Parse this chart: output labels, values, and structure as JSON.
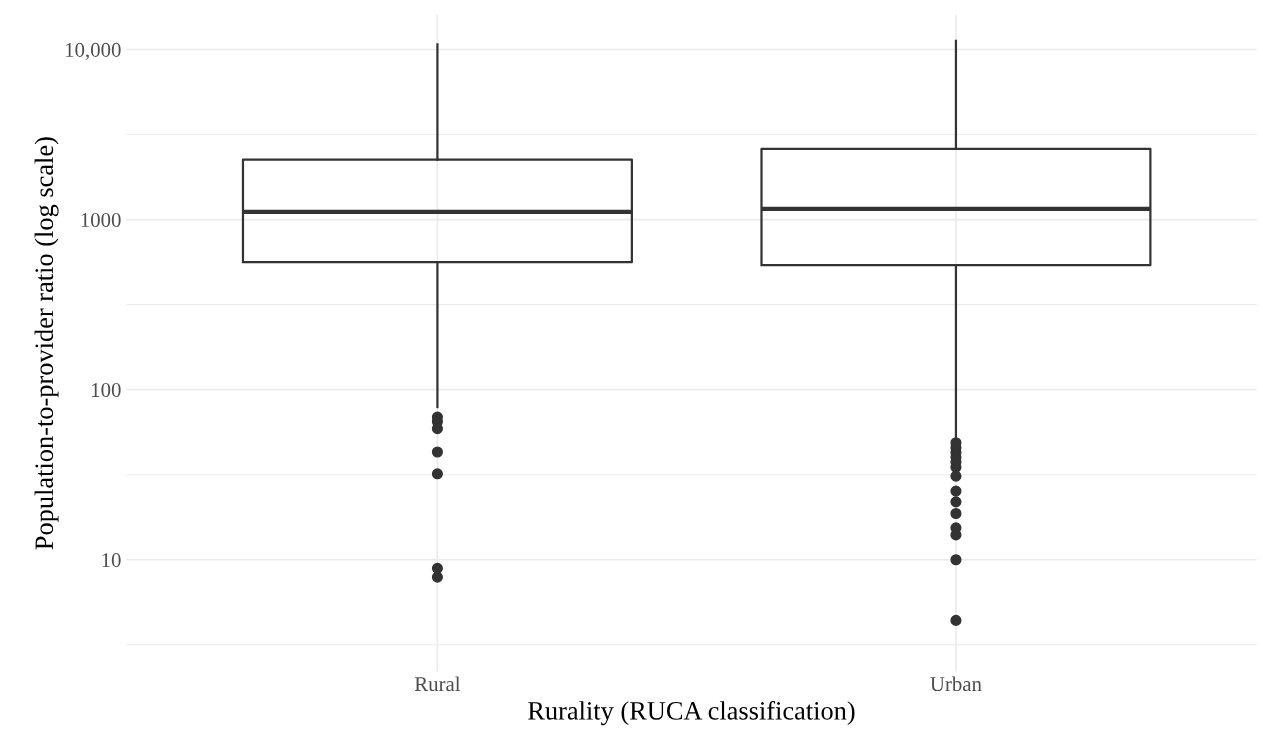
{
  "chart_data": {
    "type": "box",
    "xlabel": "Rurality (RUCA classification)",
    "ylabel": "Population-to-provider ratio (log scale)",
    "categories": [
      "Rural",
      "Urban"
    ],
    "boxes": [
      {
        "low": 79,
        "q1": 562,
        "median": 1110,
        "q3": 2250,
        "high": 10700,
        "outliers": [
          69,
          65,
          59,
          43,
          32,
          8.9,
          7.9
        ]
      },
      {
        "low": 51,
        "q1": 540,
        "median": 1155,
        "q3": 2600,
        "high": 11250,
        "outliers": [
          48.7,
          45.6,
          42.7,
          40,
          37.5,
          35,
          31,
          25.3,
          21.9,
          18.7,
          15.4,
          14,
          10,
          4.4
        ]
      }
    ],
    "color": "#333333",
    "log": "y",
    "ylim": [
      2.2,
      16000
    ],
    "yticks": [
      10,
      100,
      1000,
      {
        "value": 10000,
        "label": "10,000"
      }
    ],
    "grid": true
  }
}
